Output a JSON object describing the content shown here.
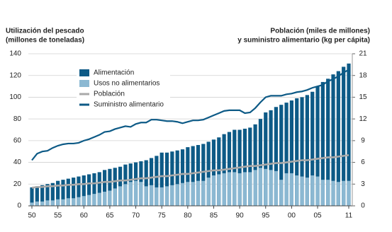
{
  "chart_data": {
    "type": "bar-line",
    "y_label": [
      "Utilización del pescado",
      "(millones de toneladas)"
    ],
    "y2_label": [
      "Población (miles de millones)",
      "y suministro alimentario (kg per cápita)"
    ],
    "categories": [
      "50",
      null,
      null,
      null,
      null,
      "55",
      null,
      null,
      null,
      null,
      "60",
      null,
      null,
      null,
      null,
      "65",
      null,
      null,
      null,
      null,
      "70",
      null,
      null,
      null,
      null,
      "75",
      null,
      null,
      null,
      null,
      "80",
      null,
      null,
      null,
      null,
      "85",
      null,
      null,
      null,
      null,
      "90",
      null,
      null,
      null,
      null,
      "95",
      null,
      null,
      null,
      null,
      "00",
      null,
      null,
      null,
      null,
      "05",
      null,
      null,
      null,
      null,
      null,
      "11"
    ],
    "ylim": [
      0,
      140
    ],
    "yticks": [
      0,
      20,
      40,
      60,
      80,
      100,
      120,
      140
    ],
    "y2lim": [
      0,
      21
    ],
    "y2ticks": [
      0,
      3,
      6,
      9,
      12,
      15,
      18,
      21
    ],
    "grid": true,
    "series": [
      {
        "name": "Alimentación",
        "kind": "bar",
        "color": "#0d5a86",
        "values": [
          17,
          18,
          19,
          20,
          21,
          23,
          24,
          25,
          26,
          27,
          28,
          29,
          30,
          31,
          33,
          34,
          35,
          36,
          38,
          39,
          40,
          41,
          42,
          44,
          46,
          49,
          49,
          50,
          51,
          52,
          54,
          55,
          56,
          57,
          59,
          61,
          63,
          66,
          68,
          70,
          70,
          71,
          72,
          75,
          80,
          86,
          88,
          91,
          93,
          95,
          97,
          99,
          100,
          102,
          105,
          110,
          114,
          117,
          121,
          124,
          128,
          131
        ]
      },
      {
        "name": "Usos no alimentarios",
        "kind": "bar",
        "color": "#8bb8d2",
        "values": [
          3,
          4,
          4,
          5,
          5,
          6,
          6,
          7,
          7,
          8,
          9,
          10,
          11,
          12,
          13,
          14,
          16,
          18,
          20,
          22,
          23,
          22,
          18,
          19,
          17,
          17,
          18,
          19,
          20,
          21,
          22,
          22,
          23,
          23,
          26,
          28,
          29,
          30,
          31,
          31,
          30,
          31,
          31,
          33,
          35,
          34,
          33,
          32,
          24,
          30,
          30,
          28,
          27,
          26,
          28,
          27,
          24,
          24,
          23,
          22,
          23,
          23
        ]
      },
      {
        "name": "Población",
        "kind": "line",
        "axis": "y2",
        "color": "#a9a9a9",
        "values": [
          2.5,
          2.6,
          2.6,
          2.7,
          2.7,
          2.8,
          2.8,
          2.9,
          2.9,
          3.0,
          3.0,
          3.1,
          3.1,
          3.2,
          3.3,
          3.3,
          3.4,
          3.5,
          3.5,
          3.6,
          3.7,
          3.8,
          3.8,
          3.9,
          4.0,
          4.1,
          4.1,
          4.2,
          4.3,
          4.4,
          4.4,
          4.5,
          4.6,
          4.7,
          4.8,
          4.9,
          4.9,
          5.0,
          5.1,
          5.2,
          5.3,
          5.4,
          5.5,
          5.5,
          5.6,
          5.7,
          5.8,
          5.9,
          5.9,
          6.0,
          6.1,
          6.2,
          6.3,
          6.3,
          6.4,
          6.5,
          6.6,
          6.7,
          6.7,
          6.8,
          6.9,
          7.0
        ]
      },
      {
        "name": "Suministro alimentario",
        "kind": "line",
        "axis": "y2",
        "color": "#0d5a86",
        "values": [
          6.3,
          7.2,
          7.5,
          7.6,
          8.0,
          8.3,
          8.5,
          8.6,
          8.6,
          8.7,
          9.0,
          9.2,
          9.5,
          9.8,
          10.2,
          10.3,
          10.6,
          10.8,
          11.0,
          10.9,
          11.3,
          11.5,
          11.5,
          11.9,
          11.9,
          11.8,
          11.7,
          11.7,
          11.6,
          11.4,
          11.6,
          11.8,
          11.8,
          11.9,
          12.2,
          12.5,
          12.8,
          13.1,
          13.2,
          13.2,
          13.2,
          12.8,
          12.9,
          13.5,
          14.3,
          15.0,
          15.2,
          15.2,
          15.2,
          15.4,
          15.5,
          15.7,
          15.8,
          16.0,
          16.3,
          16.5,
          16.7,
          17.2,
          17.5,
          17.9,
          18.4,
          18.8
        ]
      }
    ]
  }
}
